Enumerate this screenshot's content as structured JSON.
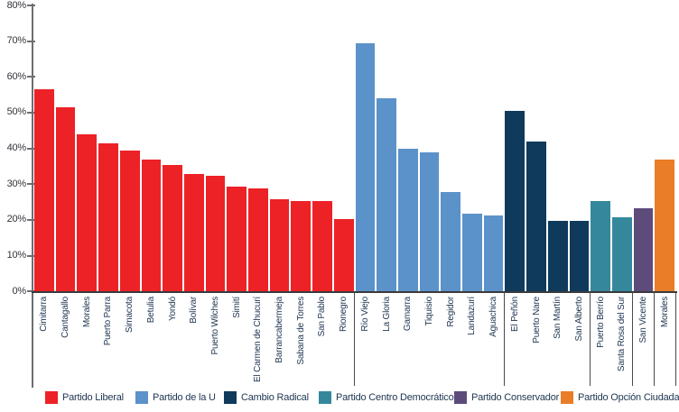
{
  "chart_data": {
    "type": "bar",
    "title": "",
    "xlabel": "",
    "ylabel": "",
    "unit": "%",
    "ylim": [
      0,
      80
    ],
    "ytick_labels": [
      "80%",
      "70%",
      "60%",
      "50%",
      "40%",
      "30%",
      "20%",
      "10%",
      "0%"
    ],
    "grid": false,
    "legend_position": "bottom",
    "groups": [
      {
        "party": "Partido Liberal",
        "color": "#EC2227",
        "bars": [
          {
            "label": "Cimitarra",
            "value": 56.5
          },
          {
            "label": "Cantagallo",
            "value": 51.5
          },
          {
            "label": "Morales",
            "value": 44
          },
          {
            "label": "Puerto Parra",
            "value": 41.5
          },
          {
            "label": "Simacota",
            "value": 39.5
          },
          {
            "label": "Betulia",
            "value": 37
          },
          {
            "label": "Yondó",
            "value": 35.5
          },
          {
            "label": "Bolívar",
            "value": 33
          },
          {
            "label": "Puerto Wilches",
            "value": 32.5
          },
          {
            "label": "Simití",
            "value": 29.5
          },
          {
            "label": "El Carmen de Chucurí",
            "value": 29
          },
          {
            "label": "Barrancabermeja",
            "value": 26
          },
          {
            "label": "Sabana de Torres",
            "value": 25.5
          },
          {
            "label": "San Pablo",
            "value": 25.5
          },
          {
            "label": "Rionegro",
            "value": 20.5
          }
        ]
      },
      {
        "party": "Partido de la U",
        "color": "#5B92C9",
        "bars": [
          {
            "label": "Río Viejo",
            "value": 69.5
          },
          {
            "label": "La Gloria",
            "value": 54
          },
          {
            "label": "Gamarra",
            "value": 40
          },
          {
            "label": "Tiquisio",
            "value": 39
          },
          {
            "label": "Regidor",
            "value": 28
          },
          {
            "label": "Landazurí",
            "value": 22
          },
          {
            "label": "Aguachica",
            "value": 21.5
          }
        ]
      },
      {
        "party": "Cambio Radical",
        "color": "#0F3A5C",
        "bars": [
          {
            "label": "El Peñón",
            "value": 50.5
          },
          {
            "label": "Puerto Nare",
            "value": 42
          },
          {
            "label": "San Martín",
            "value": 20
          },
          {
            "label": "San Alberto",
            "value": 20
          }
        ]
      },
      {
        "party": "Partido Centro Democrático",
        "color": "#35889B",
        "bars": [
          {
            "label": "Puerto Berrío",
            "value": 25.5
          },
          {
            "label": "Santa Rosa del Sur",
            "value": 21
          }
        ]
      },
      {
        "party": "Partido Conservador",
        "color": "#5D4B7C",
        "bars": [
          {
            "label": "San Vicente",
            "value": 23.5
          }
        ]
      },
      {
        "party": "Partido Opción Ciudadana",
        "color": "#E97D28",
        "bars": [
          {
            "label": "Morales",
            "value": 37
          }
        ]
      }
    ],
    "legend": [
      {
        "label": "Partido Liberal",
        "color": "#EC2227"
      },
      {
        "label": "Partido de la U",
        "color": "#5B92C9"
      },
      {
        "label": "Cambio Radical",
        "color": "#0F3A5C"
      },
      {
        "label": "Partido Centro Democrático",
        "color": "#35889B"
      },
      {
        "label": "Partido Conservador",
        "color": "#5D4B7C"
      },
      {
        "label": "Partido Opción Ciudadana",
        "color": "#E97D28"
      }
    ]
  }
}
